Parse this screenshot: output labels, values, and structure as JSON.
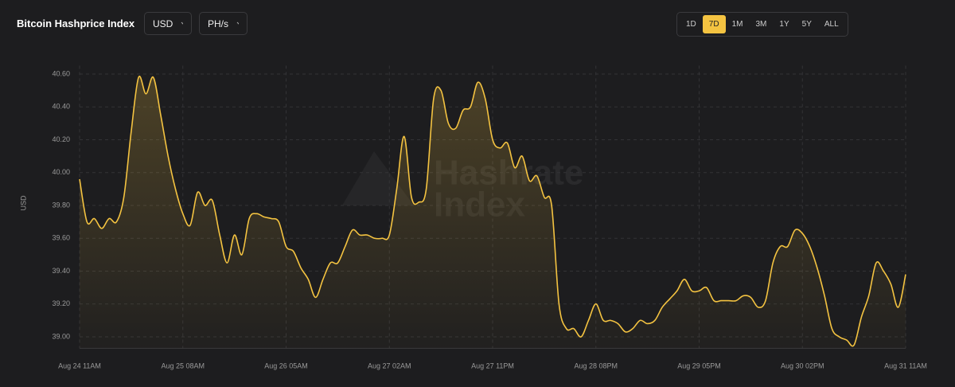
{
  "header": {
    "title": "Bitcoin Hashprice Index",
    "currency": "USD",
    "unit": "PH/s",
    "ranges": [
      "1D",
      "7D",
      "1M",
      "3M",
      "1Y",
      "5Y",
      "ALL"
    ],
    "active_range": "7D"
  },
  "chart_data": {
    "type": "line",
    "y_label": "USD",
    "watermark": [
      "Hashrate",
      "Index"
    ],
    "color": "#f4c341",
    "grid": true,
    "ylim": [
      38.93,
      40.7
    ],
    "yticks": [
      {
        "value": 39,
        "label": "39.00"
      },
      {
        "value": 39.2,
        "label": "39.20"
      },
      {
        "value": 39.4,
        "label": "39.40"
      },
      {
        "value": 39.6,
        "label": "39.60"
      },
      {
        "value": 39.8,
        "label": "39.80"
      },
      {
        "value": 40,
        "label": "40.00"
      },
      {
        "value": 40.2,
        "label": "40.20"
      },
      {
        "value": 40.4,
        "label": "40.40"
      },
      {
        "value": 40.6,
        "label": "40.60"
      }
    ],
    "categories": [
      "Aug 24 11AM",
      null,
      null,
      null,
      null,
      null,
      null,
      null,
      null,
      null,
      null,
      null,
      null,
      null,
      "Aug 25 08AM",
      null,
      null,
      null,
      null,
      null,
      null,
      null,
      null,
      null,
      null,
      null,
      null,
      null,
      "Aug 26 05AM",
      null,
      null,
      null,
      null,
      null,
      null,
      null,
      null,
      null,
      null,
      null,
      null,
      null,
      "Aug 27 02AM",
      null,
      null,
      null,
      null,
      null,
      null,
      null,
      null,
      null,
      null,
      null,
      null,
      null,
      "Aug 27 11PM",
      null,
      null,
      null,
      null,
      null,
      null,
      null,
      null,
      null,
      null,
      null,
      null,
      null,
      "Aug 28 08PM",
      null,
      null,
      null,
      null,
      null,
      null,
      null,
      null,
      null,
      null,
      null,
      null,
      null,
      "Aug 29 05PM",
      null,
      null,
      null,
      null,
      null,
      null,
      null,
      null,
      null,
      null,
      null,
      null,
      null,
      "Aug 30 02PM",
      null,
      null,
      null,
      null,
      null,
      null,
      null,
      null,
      null,
      null,
      null,
      null,
      null,
      "Aug 31 11AM"
    ],
    "values": [
      39.96,
      39.7,
      39.72,
      39.66,
      39.72,
      39.7,
      39.85,
      40.25,
      40.58,
      40.48,
      40.58,
      40.35,
      40.1,
      39.9,
      39.75,
      39.68,
      39.88,
      39.8,
      39.83,
      39.62,
      39.45,
      39.62,
      39.5,
      39.72,
      39.75,
      39.73,
      39.72,
      39.7,
      39.55,
      39.52,
      39.42,
      39.35,
      39.24,
      39.35,
      39.45,
      39.45,
      39.55,
      39.65,
      39.62,
      39.62,
      39.6,
      39.6,
      39.62,
      39.9,
      40.22,
      39.85,
      39.82,
      39.9,
      40.45,
      40.5,
      40.3,
      40.27,
      40.38,
      40.4,
      40.55,
      40.45,
      40.2,
      40.15,
      40.18,
      40.03,
      40.1,
      39.95,
      39.98,
      39.85,
      39.8,
      39.2,
      39.05,
      39.05,
      39.0,
      39.1,
      39.2,
      39.1,
      39.1,
      39.08,
      39.03,
      39.05,
      39.1,
      39.08,
      39.1,
      39.18,
      39.23,
      39.28,
      39.35,
      39.28,
      39.28,
      39.3,
      39.22,
      39.22,
      39.22,
      39.22,
      39.25,
      39.24,
      39.18,
      39.22,
      39.45,
      39.55,
      39.55,
      39.65,
      39.63,
      39.55,
      39.42,
      39.25,
      39.05,
      39.0,
      38.98,
      38.95,
      39.12,
      39.25,
      39.45,
      39.4,
      39.32,
      39.18,
      39.38
    ]
  }
}
